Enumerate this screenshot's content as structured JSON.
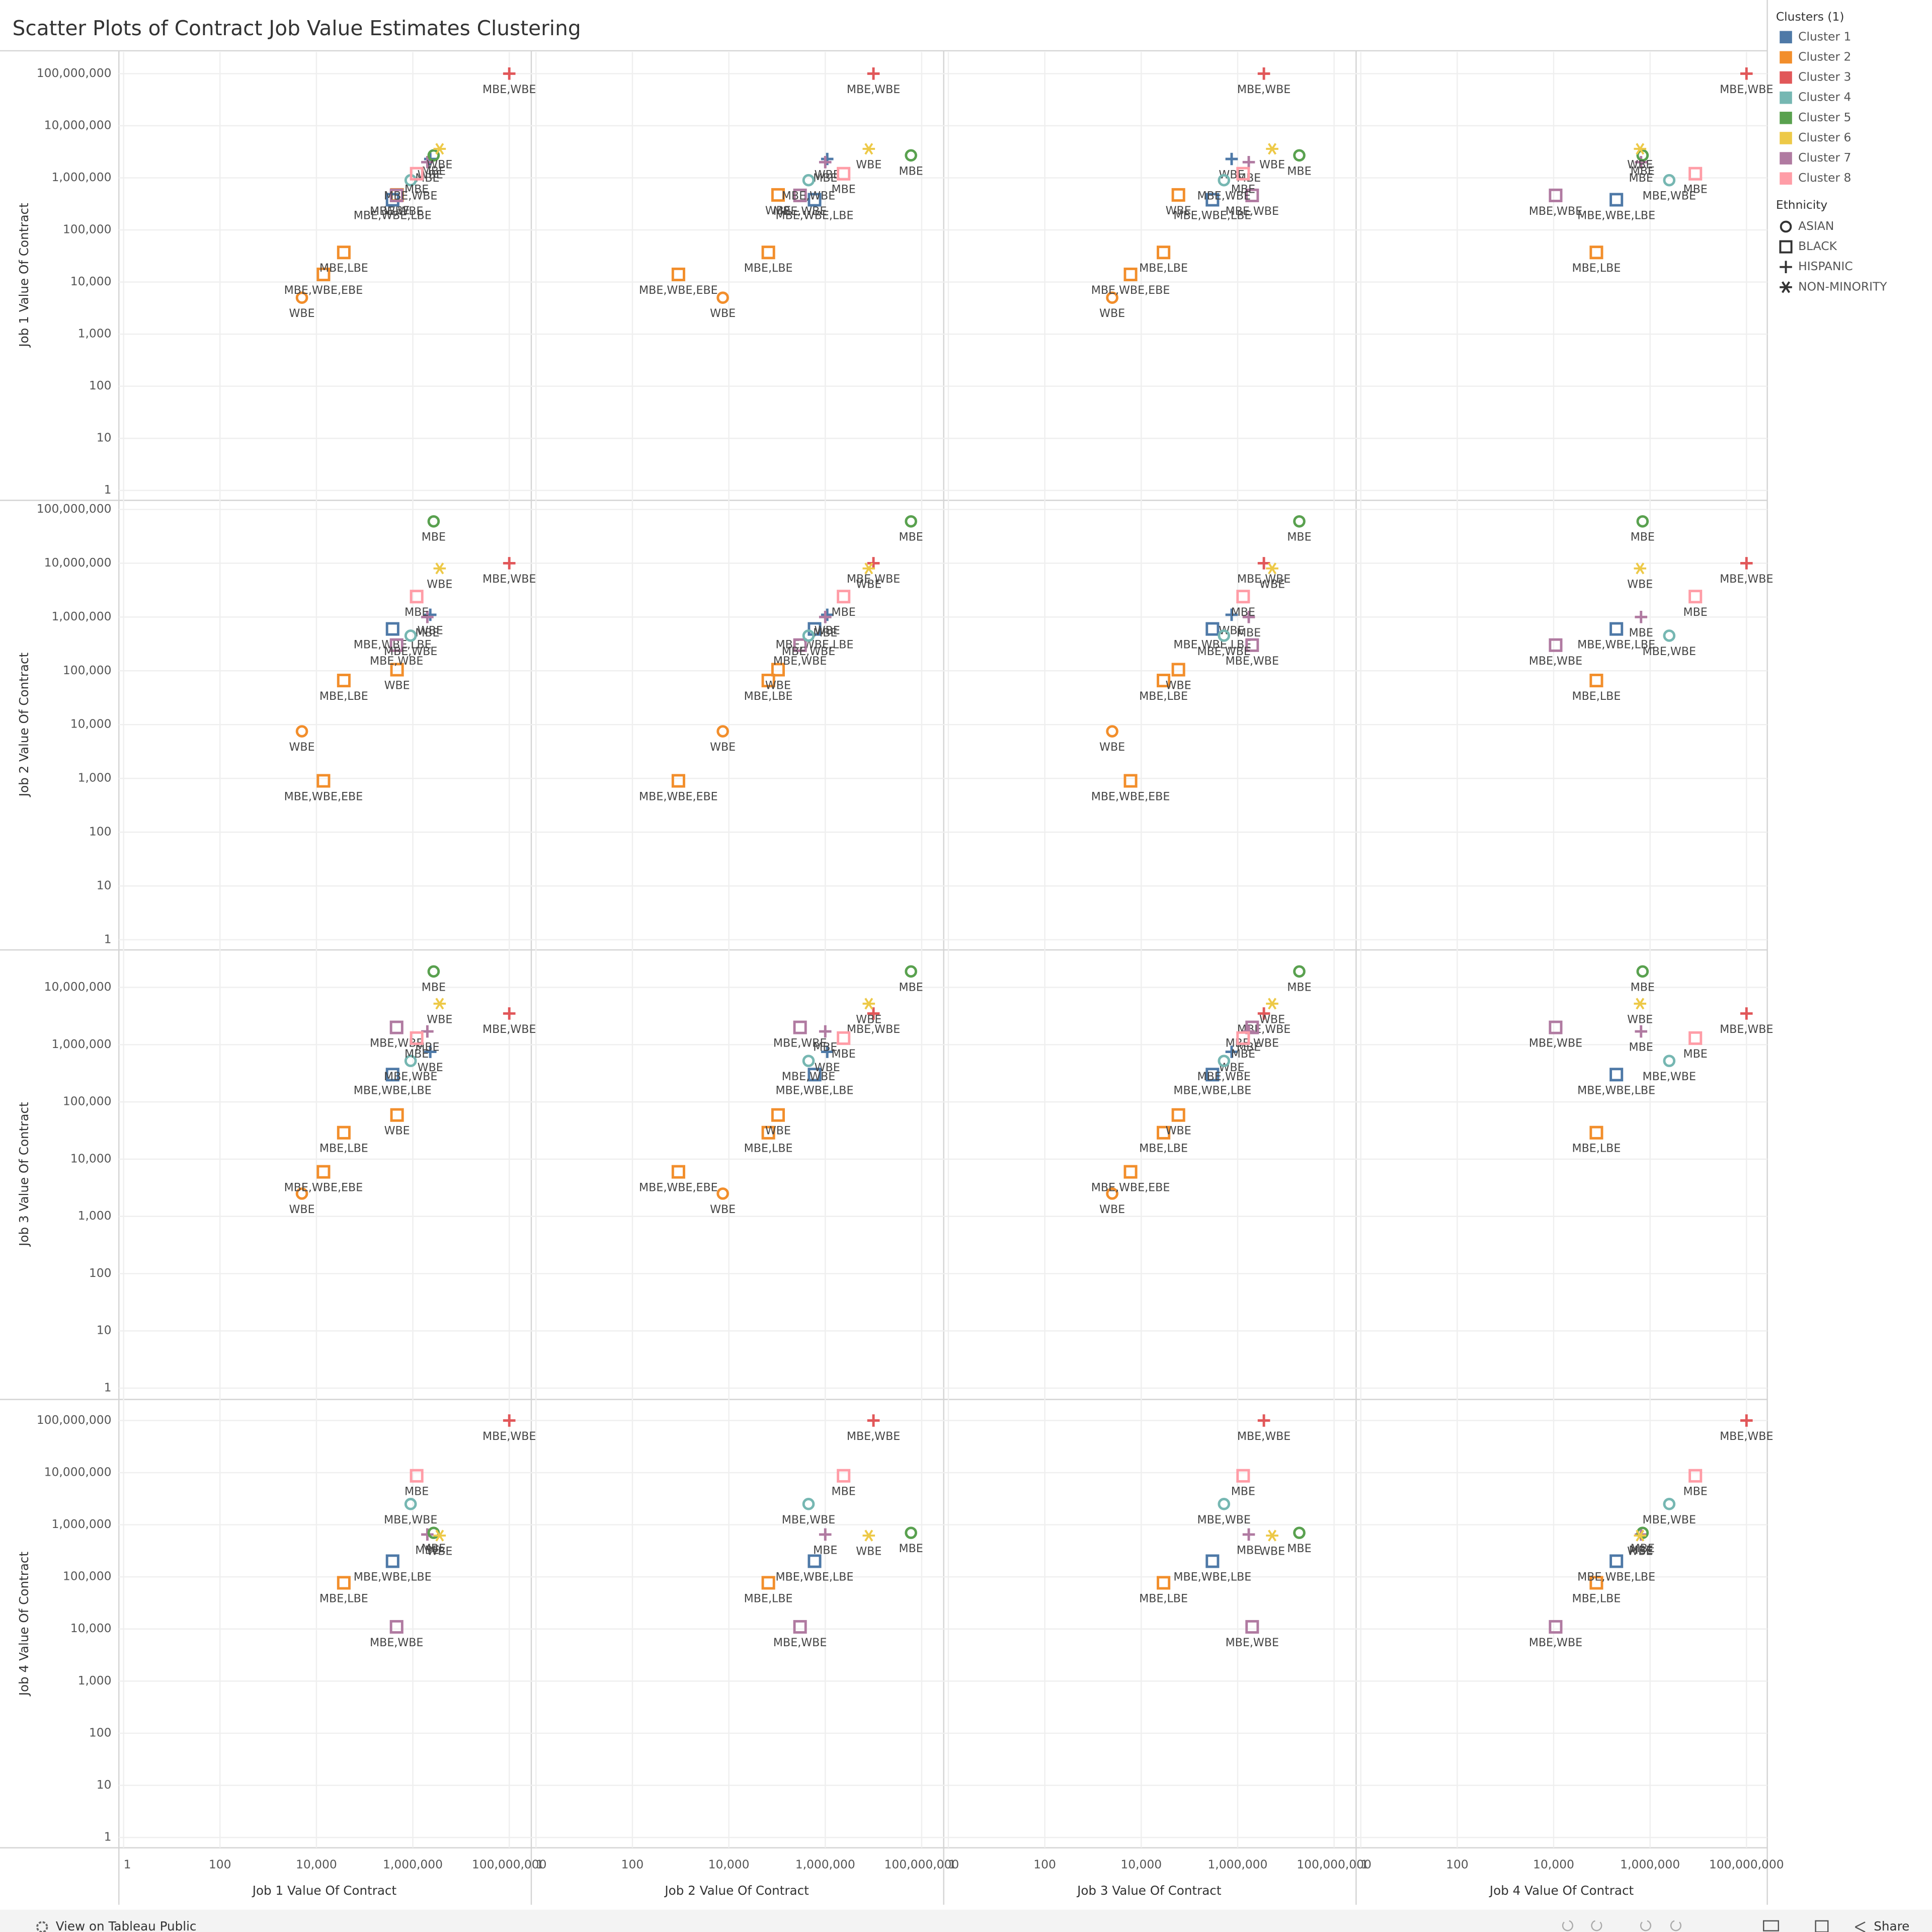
{
  "chart_data": {
    "type": "scatter",
    "title": "Scatter Plots of Contract Job Value Estimates Clustering",
    "log_scale": true,
    "grid": true,
    "axis_labels": [
      "Job 1 Value Of Contract",
      "Job 2 Value Of Contract",
      "Job 3 Value Of Contract",
      "Job 4 Value Of Contract"
    ],
    "xlim": [
      0.8,
      270000000
    ],
    "xticks": [
      1,
      100,
      {
        "value": 10000,
        "label": "10,000"
      },
      {
        "value": 1000000,
        "label": "1,000,000"
      },
      {
        "value": 100000000,
        "label": "100,000,000"
      }
    ],
    "y_axes": [
      {
        "ylim": [
          0.72,
          260000000
        ],
        "yticks": [
          1,
          10,
          100,
          {
            "value": 1000,
            "label": "1,000"
          },
          {
            "value": 10000,
            "label": "10,000"
          },
          {
            "value": 100000,
            "label": "100,000"
          },
          {
            "value": 1000000,
            "label": "1,000,000"
          },
          {
            "value": 10000000,
            "label": "10,000,000"
          },
          {
            "value": 100000000,
            "label": "100,000,000"
          }
        ]
      },
      {
        "ylim": [
          0.72,
          140000000
        ],
        "yticks": [
          1,
          10,
          100,
          {
            "value": 1000,
            "label": "1,000"
          },
          {
            "value": 10000,
            "label": "10,000"
          },
          {
            "value": 100000,
            "label": "100,000"
          },
          {
            "value": 1000000,
            "label": "1,000,000"
          },
          {
            "value": 10000000,
            "label": "10,000,000"
          },
          {
            "value": 100000000,
            "label": "100,000,000"
          }
        ]
      },
      {
        "ylim": [
          0.7,
          43000000
        ],
        "yticks": [
          1,
          10,
          100,
          {
            "value": 1000,
            "label": "1,000"
          },
          {
            "value": 10000,
            "label": "10,000"
          },
          {
            "value": 100000,
            "label": "100,000"
          },
          {
            "value": 1000000,
            "label": "1,000,000"
          },
          {
            "value": 10000000,
            "label": "10,000,000"
          }
        ]
      },
      {
        "ylim": [
          0.67,
          240000000
        ],
        "yticks": [
          1,
          10,
          100,
          {
            "value": 1000,
            "label": "1,000"
          },
          {
            "value": 10000,
            "label": "10,000"
          },
          {
            "value": 100000,
            "label": "100,000"
          },
          {
            "value": 1000000,
            "label": "1,000,000"
          },
          {
            "value": 10000000,
            "label": "10,000,000"
          },
          {
            "value": 100000000,
            "label": "100,000,000"
          }
        ]
      }
    ],
    "clusters": {
      "title": "Clusters (1)",
      "items": [
        {
          "name": "Cluster 1",
          "color": "#4e79a7"
        },
        {
          "name": "Cluster 2",
          "color": "#f28e2b"
        },
        {
          "name": "Cluster 3",
          "color": "#e15759"
        },
        {
          "name": "Cluster 4",
          "color": "#76b7b2"
        },
        {
          "name": "Cluster 5",
          "color": "#59a14f"
        },
        {
          "name": "Cluster 6",
          "color": "#edc948"
        },
        {
          "name": "Cluster 7",
          "color": "#b07aa1"
        },
        {
          "name": "Cluster 8",
          "color": "#ff9da7"
        }
      ]
    },
    "ethnicity": {
      "title": "Ethnicity",
      "items": [
        {
          "name": "ASIAN",
          "shape": "circle"
        },
        {
          "name": "BLACK",
          "shape": "square"
        },
        {
          "name": "HISPANIC",
          "shape": "plus"
        },
        {
          "name": "NON-MINORITY",
          "shape": "asterisk"
        }
      ]
    },
    "points": [
      {
        "label": "MBE,WBE",
        "cluster": "Cluster 3",
        "ethnicity": "HISPANIC",
        "values": [
          100000000,
          10000000,
          3500000,
          100000000
        ]
      },
      {
        "label": "WBE",
        "cluster": "Cluster 2",
        "ethnicity": "ASIAN",
        "values": [
          5000,
          7500,
          2500,
          null
        ]
      },
      {
        "label": "MBE,WBE,EBE",
        "cluster": "Cluster 2",
        "ethnicity": "BLACK",
        "values": [
          14000,
          900,
          6000,
          null
        ]
      },
      {
        "label": "MBE,LBE",
        "cluster": "Cluster 2",
        "ethnicity": "BLACK",
        "values": [
          37000,
          66000,
          29000,
          77000
        ]
      },
      {
        "label": "WBE",
        "cluster": "Cluster 2",
        "ethnicity": "BLACK",
        "values": [
          470000,
          105000,
          59000,
          null
        ]
      },
      {
        "label": "MBE,WBE,LBE",
        "cluster": "Cluster 1",
        "ethnicity": "BLACK",
        "values": [
          380000,
          600000,
          300000,
          200000
        ]
      },
      {
        "label": "WBE",
        "cluster": "Cluster 1",
        "ethnicity": "HISPANIC",
        "values": [
          2300000,
          1100000,
          750000,
          null
        ]
      },
      {
        "label": "MBE",
        "cluster": "Cluster 7",
        "ethnicity": "HISPANIC",
        "values": [
          2000000,
          1000000,
          1700000,
          650000
        ]
      },
      {
        "label": "MBE,WBE",
        "cluster": "Cluster 7",
        "ethnicity": "BLACK",
        "values": [
          460000,
          300000,
          2000000,
          11000
        ]
      },
      {
        "label": "MBE,WBE",
        "cluster": "Cluster 4",
        "ethnicity": "ASIAN",
        "values": [
          900000,
          450000,
          520000,
          2500000
        ]
      },
      {
        "label": "MBE",
        "cluster": "Cluster 5",
        "ethnicity": "ASIAN",
        "values": [
          2700000,
          60000000,
          19000000,
          700000
        ]
      },
      {
        "label": "WBE",
        "cluster": "Cluster 6",
        "ethnicity": "NON-MINORITY",
        "values": [
          3600000,
          8000000,
          5200000,
          620000
        ]
      },
      {
        "label": "MBE",
        "cluster": "Cluster 8",
        "ethnicity": "BLACK",
        "values": [
          1200000,
          2400000,
          1300000,
          8700000
        ]
      }
    ]
  },
  "footer": {
    "link": "View on Tableau Public",
    "share": "Share"
  }
}
